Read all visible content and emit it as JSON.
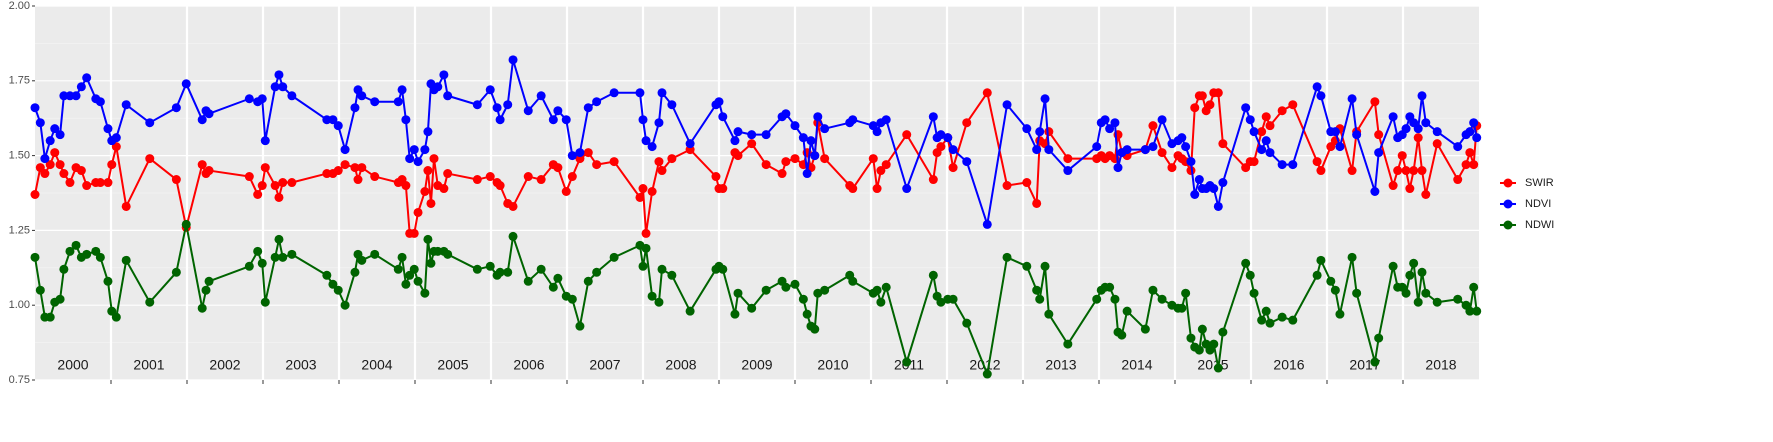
{
  "chart_data": {
    "type": "line",
    "x": [
      2000.0,
      2000.07,
      2000.13,
      2000.2,
      2000.26,
      2000.33,
      2000.38,
      2000.46,
      2000.54,
      2000.61,
      2000.68,
      2000.8,
      2000.86,
      2000.96,
      2001.01,
      2001.07,
      2001.2,
      2001.51,
      2001.86,
      2001.99,
      2002.2,
      2002.25,
      2002.29,
      2002.82,
      2002.93,
      2002.99,
      2003.03,
      2003.16,
      2003.21,
      2003.26,
      2003.38,
      2003.84,
      2003.92,
      2003.99,
      2004.08,
      2004.21,
      2004.25,
      2004.3,
      2004.47,
      2004.78,
      2004.83,
      2004.88,
      2004.93,
      2004.99,
      2005.04,
      2005.13,
      2005.17,
      2005.21,
      2005.25,
      2005.3,
      2005.38,
      2005.43,
      2005.82,
      2005.99,
      2006.08,
      2006.12,
      2006.22,
      2006.29,
      2006.49,
      2006.66,
      2006.82,
      2006.88,
      2006.99,
      2007.07,
      2007.17,
      2007.28,
      2007.39,
      2007.62,
      2007.96,
      2008.0,
      2008.04,
      2008.12,
      2008.21,
      2008.25,
      2008.38,
      2008.62,
      2008.96,
      2009.0,
      2009.05,
      2009.21,
      2009.25,
      2009.43,
      2009.62,
      2009.83,
      2009.88,
      2010.0,
      2010.11,
      2010.16,
      2010.21,
      2010.26,
      2010.3,
      2010.39,
      2010.72,
      2010.76,
      2011.03,
      2011.08,
      2011.13,
      2011.2,
      2011.47,
      2011.82,
      2011.87,
      2011.92,
      2012.01,
      2012.08,
      2012.26,
      2012.53,
      2012.79,
      2013.05,
      2013.18,
      2013.22,
      2013.29,
      2013.34,
      2013.59,
      2013.97,
      2014.03,
      2014.08,
      2014.14,
      2014.21,
      2014.25,
      2014.3,
      2014.37,
      2014.61,
      2014.71,
      2014.83,
      2014.96,
      2015.04,
      2015.09,
      2015.14,
      2015.21,
      2015.26,
      2015.32,
      2015.36,
      2015.41,
      2015.46,
      2015.51,
      2015.57,
      2015.63,
      2015.93,
      2015.99,
      2016.04,
      2016.14,
      2016.2,
      2016.25,
      2016.41,
      2016.55,
      2016.87,
      2016.92,
      2017.05,
      2017.11,
      2017.17,
      2017.33,
      2017.39,
      2017.63,
      2017.68,
      2017.87,
      2017.93,
      2017.99,
      2018.04,
      2018.09,
      2018.14,
      2018.2,
      2018.25,
      2018.3,
      2018.45,
      2018.72,
      2018.83,
      2018.88,
      2018.93,
      2018.97
    ],
    "series": [
      {
        "name": "SWIR",
        "color": "#ff0000",
        "values": [
          1.37,
          1.46,
          1.44,
          1.47,
          1.51,
          1.47,
          1.44,
          1.41,
          1.46,
          1.45,
          1.4,
          1.41,
          1.41,
          1.41,
          1.47,
          1.53,
          1.33,
          1.49,
          1.42,
          1.26,
          1.47,
          1.44,
          1.45,
          1.43,
          1.37,
          1.4,
          1.46,
          1.4,
          1.36,
          1.41,
          1.41,
          1.44,
          1.44,
          1.45,
          1.47,
          1.46,
          1.42,
          1.46,
          1.43,
          1.41,
          1.42,
          1.4,
          1.24,
          1.24,
          1.31,
          1.38,
          1.45,
          1.34,
          1.49,
          1.4,
          1.39,
          1.44,
          1.42,
          1.43,
          1.41,
          1.4,
          1.34,
          1.33,
          1.43,
          1.42,
          1.47,
          1.46,
          1.38,
          1.43,
          1.49,
          1.51,
          1.47,
          1.48,
          1.36,
          1.39,
          1.24,
          1.38,
          1.48,
          1.45,
          1.49,
          1.52,
          1.43,
          1.39,
          1.39,
          1.51,
          1.5,
          1.54,
          1.47,
          1.44,
          1.48,
          1.49,
          1.47,
          1.51,
          1.46,
          1.5,
          1.61,
          1.49,
          1.4,
          1.39,
          1.49,
          1.39,
          1.45,
          1.47,
          1.57,
          1.42,
          1.51,
          1.53,
          1.56,
          1.46,
          1.61,
          1.71,
          1.4,
          1.41,
          1.34,
          1.55,
          1.54,
          1.58,
          1.49,
          1.49,
          1.5,
          1.49,
          1.5,
          1.49,
          1.57,
          1.51,
          1.5,
          1.52,
          1.6,
          1.51,
          1.46,
          1.5,
          1.49,
          1.48,
          1.45,
          1.66,
          1.7,
          1.7,
          1.65,
          1.67,
          1.71,
          1.71,
          1.54,
          1.46,
          1.48,
          1.48,
          1.58,
          1.63,
          1.6,
          1.65,
          1.67,
          1.48,
          1.45,
          1.53,
          1.55,
          1.59,
          1.45,
          1.58,
          1.68,
          1.57,
          1.4,
          1.45,
          1.5,
          1.45,
          1.39,
          1.45,
          1.56,
          1.45,
          1.37,
          1.54,
          1.42,
          1.47,
          1.51,
          1.47,
          1.6
        ]
      },
      {
        "name": "NDVI",
        "color": "#0000ff",
        "values": [
          1.66,
          1.61,
          1.49,
          1.55,
          1.59,
          1.57,
          1.7,
          1.7,
          1.7,
          1.73,
          1.76,
          1.69,
          1.68,
          1.59,
          1.55,
          1.56,
          1.67,
          1.61,
          1.66,
          1.74,
          1.62,
          1.65,
          1.64,
          1.69,
          1.68,
          1.69,
          1.55,
          1.73,
          1.77,
          1.73,
          1.7,
          1.62,
          1.62,
          1.6,
          1.52,
          1.66,
          1.72,
          1.7,
          1.68,
          1.68,
          1.72,
          1.62,
          1.49,
          1.52,
          1.48,
          1.52,
          1.58,
          1.74,
          1.72,
          1.73,
          1.77,
          1.7,
          1.67,
          1.72,
          1.66,
          1.62,
          1.67,
          1.82,
          1.65,
          1.7,
          1.62,
          1.65,
          1.62,
          1.5,
          1.51,
          1.66,
          1.68,
          1.71,
          1.71,
          1.62,
          1.55,
          1.53,
          1.61,
          1.71,
          1.67,
          1.54,
          1.67,
          1.68,
          1.63,
          1.55,
          1.58,
          1.57,
          1.57,
          1.63,
          1.64,
          1.6,
          1.56,
          1.44,
          1.55,
          1.5,
          1.63,
          1.59,
          1.61,
          1.62,
          1.6,
          1.58,
          1.61,
          1.62,
          1.39,
          1.63,
          1.56,
          1.57,
          1.56,
          1.52,
          1.48,
          1.27,
          1.67,
          1.59,
          1.52,
          1.58,
          1.69,
          1.52,
          1.45,
          1.53,
          1.61,
          1.62,
          1.59,
          1.61,
          1.46,
          1.51,
          1.52,
          1.52,
          1.53,
          1.62,
          1.54,
          1.55,
          1.56,
          1.53,
          1.48,
          1.37,
          1.42,
          1.39,
          1.39,
          1.4,
          1.39,
          1.33,
          1.41,
          1.66,
          1.62,
          1.58,
          1.52,
          1.55,
          1.51,
          1.47,
          1.47,
          1.73,
          1.7,
          1.58,
          1.58,
          1.53,
          1.69,
          1.57,
          1.38,
          1.51,
          1.63,
          1.56,
          1.57,
          1.59,
          1.63,
          1.61,
          1.59,
          1.7,
          1.61,
          1.58,
          1.53,
          1.57,
          1.58,
          1.61,
          1.56
        ]
      },
      {
        "name": "NDWI",
        "color": "#006400",
        "values": [
          1.16,
          1.05,
          0.96,
          0.96,
          1.01,
          1.02,
          1.12,
          1.18,
          1.2,
          1.16,
          1.17,
          1.18,
          1.16,
          1.08,
          0.98,
          0.96,
          1.15,
          1.01,
          1.11,
          1.27,
          0.99,
          1.05,
          1.08,
          1.13,
          1.18,
          1.14,
          1.01,
          1.16,
          1.22,
          1.16,
          1.17,
          1.1,
          1.07,
          1.05,
          1.0,
          1.11,
          1.17,
          1.15,
          1.17,
          1.12,
          1.16,
          1.07,
          1.1,
          1.12,
          1.08,
          1.04,
          1.22,
          1.14,
          1.18,
          1.18,
          1.18,
          1.17,
          1.12,
          1.13,
          1.1,
          1.11,
          1.11,
          1.23,
          1.08,
          1.12,
          1.06,
          1.09,
          1.03,
          1.02,
          0.93,
          1.08,
          1.11,
          1.16,
          1.2,
          1.13,
          1.19,
          1.03,
          1.01,
          1.12,
          1.1,
          0.98,
          1.12,
          1.13,
          1.12,
          0.97,
          1.04,
          0.99,
          1.05,
          1.08,
          1.06,
          1.07,
          1.02,
          0.97,
          0.93,
          0.92,
          1.04,
          1.05,
          1.1,
          1.08,
          1.04,
          1.05,
          1.01,
          1.06,
          0.81,
          1.1,
          1.03,
          1.01,
          1.02,
          1.02,
          0.94,
          0.77,
          1.16,
          1.13,
          1.05,
          1.02,
          1.13,
          0.97,
          0.87,
          1.02,
          1.05,
          1.06,
          1.06,
          1.02,
          0.91,
          0.9,
          0.98,
          0.92,
          1.05,
          1.02,
          1.0,
          0.99,
          0.99,
          1.04,
          0.89,
          0.86,
          0.85,
          0.92,
          0.87,
          0.85,
          0.87,
          0.79,
          0.91,
          1.14,
          1.1,
          1.04,
          0.95,
          0.98,
          0.94,
          0.96,
          0.95,
          1.1,
          1.15,
          1.08,
          1.05,
          0.97,
          1.16,
          1.04,
          0.81,
          0.89,
          1.13,
          1.06,
          1.06,
          1.04,
          1.1,
          1.14,
          1.01,
          1.11,
          1.04,
          1.01,
          1.02,
          1.0,
          0.98,
          1.06,
          0.98
        ]
      }
    ],
    "xlim": [
      2000,
      2019
    ],
    "xticks": [
      {
        "value": 2000.5,
        "label": "2000"
      },
      {
        "value": 2001.5,
        "label": "2001"
      },
      {
        "value": 2002.5,
        "label": "2002"
      },
      {
        "value": 2003.5,
        "label": "2003"
      },
      {
        "value": 2004.5,
        "label": "2004"
      },
      {
        "value": 2005.5,
        "label": "2005"
      },
      {
        "value": 2006.5,
        "label": "2006"
      },
      {
        "value": 2007.5,
        "label": "2007"
      },
      {
        "value": 2008.5,
        "label": "2008"
      },
      {
        "value": 2009.5,
        "label": "2009"
      },
      {
        "value": 2010.5,
        "label": "2010"
      },
      {
        "value": 2011.5,
        "label": "2011"
      },
      {
        "value": 2012.5,
        "label": "2012"
      },
      {
        "value": 2013.5,
        "label": "2013"
      },
      {
        "value": 2014.5,
        "label": "2014"
      },
      {
        "value": 2015.5,
        "label": "2015"
      },
      {
        "value": 2016.5,
        "label": "2016"
      },
      {
        "value": 2017.5,
        "label": "2017"
      },
      {
        "value": 2018.5,
        "label": "2018"
      }
    ],
    "ylim": [
      0.75,
      2.0
    ],
    "yticks": [
      {
        "value": 0.75,
        "label": "0.75"
      },
      {
        "value": 1.0,
        "label": "1.00"
      },
      {
        "value": 1.25,
        "label": "1.25"
      },
      {
        "value": 1.5,
        "label": "1.50"
      },
      {
        "value": 1.75,
        "label": "1.75"
      },
      {
        "value": 2.0,
        "label": "2.00"
      }
    ],
    "grid": true,
    "legend": "right"
  }
}
